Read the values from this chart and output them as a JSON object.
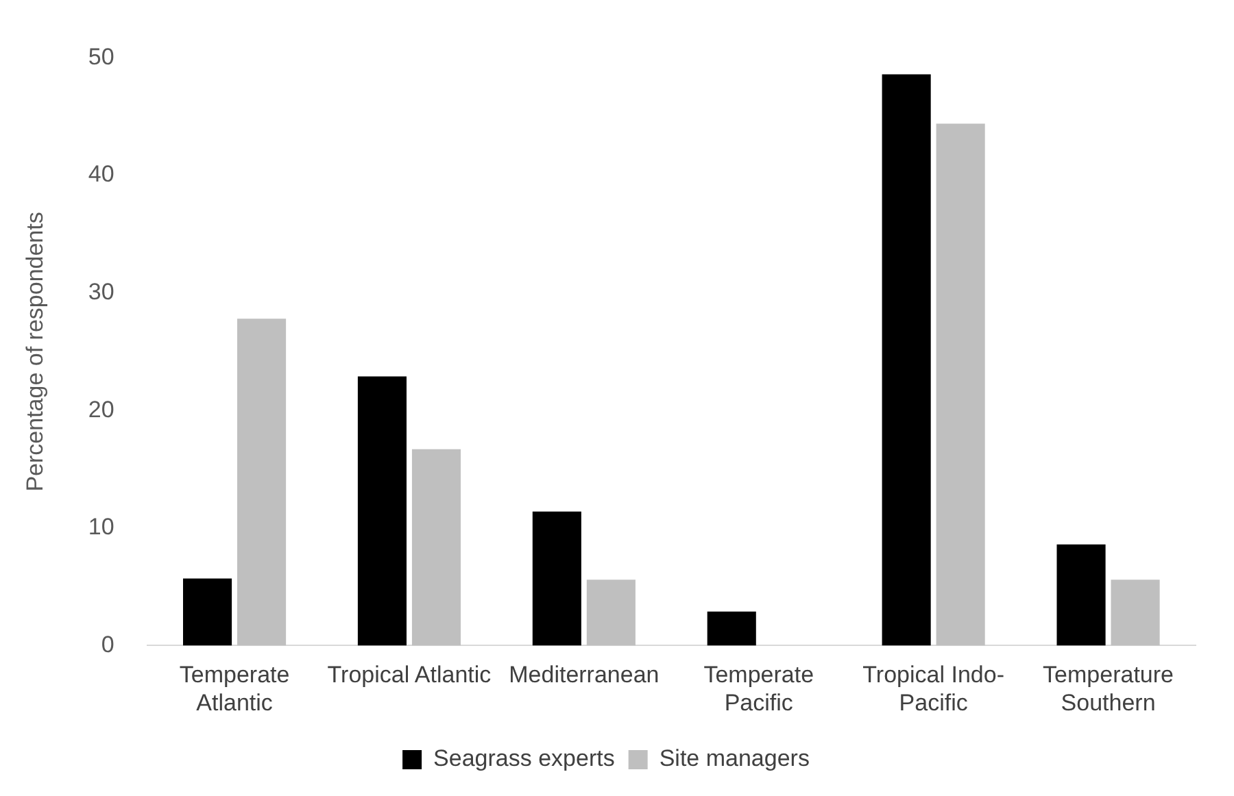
{
  "chart_data": {
    "type": "bar",
    "ylabel": "Percentage of respondents",
    "categories": [
      "Temperate Atlantic",
      "Tropical Atlantic",
      "Mediterranean",
      "Temperate Pacific",
      "Tropical Indo-Pacific",
      "Temperature Southern"
    ],
    "series": [
      {
        "name": "Seagrass experts",
        "color": "#000000",
        "values": [
          5.7,
          22.9,
          11.4,
          2.9,
          48.6,
          8.6
        ]
      },
      {
        "name": "Site managers",
        "color": "#bfbfbf",
        "values": [
          27.8,
          16.7,
          5.6,
          0,
          44.4,
          5.6
        ]
      }
    ],
    "ylim": [
      0,
      50
    ],
    "yticks": [
      0,
      10,
      20,
      30,
      40,
      50
    ],
    "grid": false,
    "legend": "bottom"
  }
}
